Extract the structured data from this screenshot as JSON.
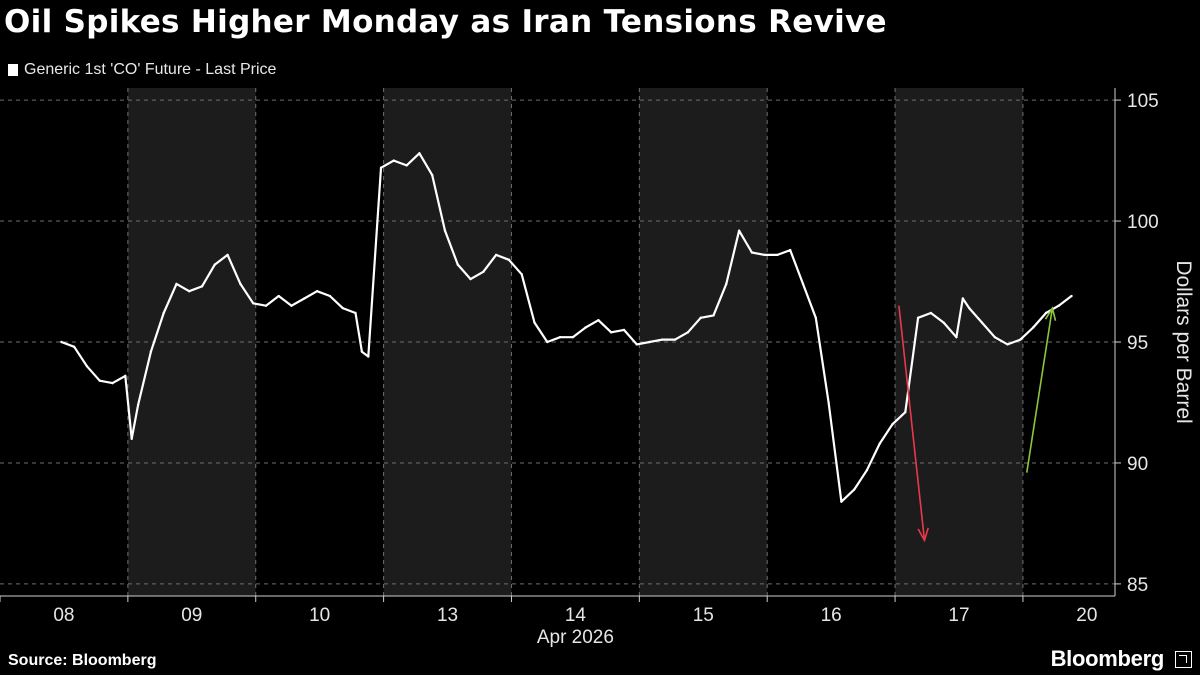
{
  "header": {
    "title": "Oil Spikes Higher Monday as Iran Tensions Revive",
    "legend_label": "Generic 1st 'CO' Future - Last Price"
  },
  "footer": {
    "source": "Source: Bloomberg",
    "brand": "Bloomberg"
  },
  "colors": {
    "background": "#000000",
    "shade_band": "#1c1c1c",
    "series": "#ffffff",
    "grid": "#6e6e6e",
    "down_arrow": "#e8394a",
    "up_arrow": "#8cc63f"
  },
  "icons": [
    "bloomberg-logo-icon"
  ],
  "chart_data": {
    "type": "line",
    "title": "Oil Spikes Higher Monday as Iran Tensions Revive",
    "xlabel": "Apr 2026",
    "ylabel": "Dollars per Barrel",
    "ylim": [
      84.5,
      105.5
    ],
    "yticks": [
      85,
      90,
      95,
      100,
      105
    ],
    "y_axis_side": "right",
    "grid": "horizontal dashed",
    "legend_position": "top-left",
    "categories": [
      "08",
      "09",
      "10",
      "13",
      "14",
      "15",
      "16",
      "17",
      "20"
    ],
    "shaded_sessions": [
      "09",
      "13",
      "15",
      "17"
    ],
    "series": [
      {
        "name": "Generic 1st 'CO' Future - Last Price",
        "x": [
          0.0,
          0.1,
          0.2,
          0.3,
          0.4,
          0.5,
          0.55,
          0.6,
          0.7,
          0.8,
          0.9,
          1.0,
          1.1,
          1.2,
          1.3,
          1.4,
          1.5,
          1.6,
          1.7,
          1.8,
          1.9,
          2.0,
          2.1,
          2.2,
          2.3,
          2.35,
          2.4,
          2.5,
          2.6,
          2.7,
          2.8,
          2.9,
          3.0,
          3.1,
          3.2,
          3.3,
          3.4,
          3.5,
          3.6,
          3.7,
          3.8,
          3.9,
          4.0,
          4.1,
          4.2,
          4.3,
          4.4,
          4.5,
          4.6,
          4.7,
          4.8,
          4.9,
          5.0,
          5.1,
          5.2,
          5.3,
          5.4,
          5.5,
          5.6,
          5.7,
          5.8,
          5.9,
          6.0,
          6.1,
          6.2,
          6.3,
          6.4,
          6.5,
          6.6,
          6.7,
          6.8,
          6.9,
          7.0,
          7.05,
          7.1,
          7.2,
          7.3,
          7.4,
          7.5,
          7.6,
          7.7,
          7.8,
          7.9
        ],
        "values": [
          95.0,
          94.8,
          94.0,
          93.4,
          93.3,
          93.6,
          91.0,
          92.4,
          94.6,
          96.2,
          97.4,
          97.1,
          97.3,
          98.2,
          98.6,
          97.4,
          96.6,
          96.5,
          96.9,
          96.5,
          96.8,
          97.1,
          96.9,
          96.4,
          96.2,
          94.6,
          94.4,
          102.2,
          102.5,
          102.3,
          102.8,
          101.9,
          99.6,
          98.2,
          97.6,
          97.9,
          98.6,
          98.4,
          97.8,
          95.8,
          95.0,
          95.2,
          95.2,
          95.6,
          95.9,
          95.4,
          95.5,
          94.9,
          95.0,
          95.1,
          95.1,
          95.4,
          96.0,
          96.1,
          97.4,
          99.6,
          98.7,
          98.6,
          98.6,
          98.8,
          97.4,
          96.0,
          92.5,
          88.4,
          88.9,
          89.7,
          90.8,
          91.6,
          92.1,
          96.0,
          96.2,
          95.8,
          95.2,
          96.8,
          96.4,
          95.8,
          95.2,
          94.9,
          95.1,
          95.6,
          96.2,
          96.5,
          96.9
        ]
      }
    ],
    "annotations": [
      {
        "type": "arrow",
        "direction": "down",
        "color": "#e8394a",
        "from": [
          6.55,
          96.5
        ],
        "to": [
          6.75,
          86.8
        ]
      },
      {
        "type": "arrow",
        "direction": "up",
        "color": "#8cc63f",
        "from": [
          7.55,
          89.6
        ],
        "to": [
          7.75,
          96.4
        ]
      }
    ]
  }
}
